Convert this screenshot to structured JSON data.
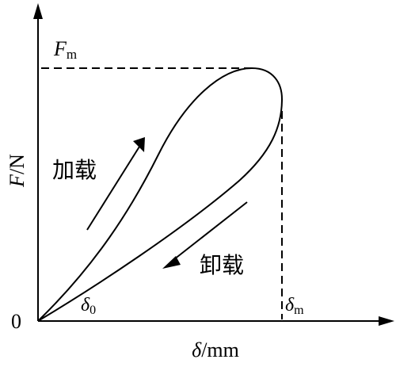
{
  "axes": {
    "y_label": {
      "symbol": "F",
      "unit": "/N"
    },
    "x_label": {
      "symbol": "δ",
      "unit": "/mm"
    },
    "origin": "0"
  },
  "labels": {
    "peak_force": {
      "symbol": "F",
      "subscript": "m"
    },
    "loading": "加载",
    "unloading": "卸载",
    "residual_displacement": {
      "symbol": "δ",
      "subscript": "0"
    },
    "max_displacement": {
      "symbol": "δ",
      "subscript": "m"
    }
  }
}
